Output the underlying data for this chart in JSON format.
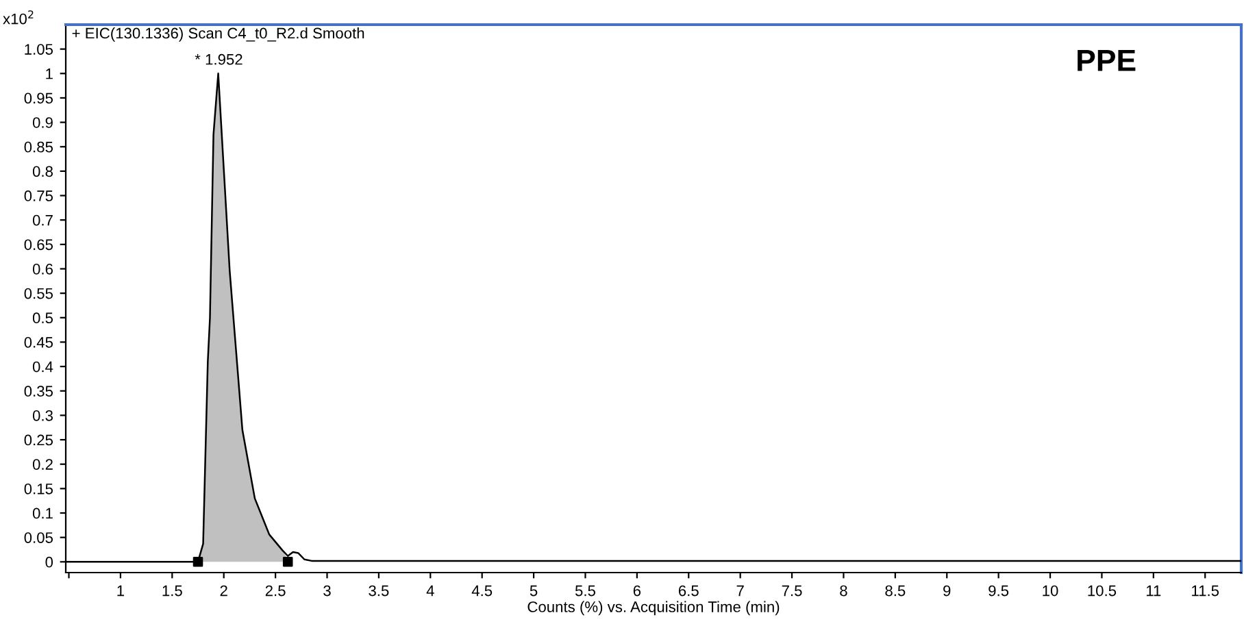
{
  "chart_data": {
    "type": "line",
    "title": "+ EIC(130.1336) Scan C4_t0_R2.d Smooth",
    "xlabel": "Counts (%) vs. Acquisition Time (min)",
    "ylabel": "x10$^{2}$",
    "series": [
      {
        "type": "area",
        "color": "#c0c0c0",
        "x": [
          1.75,
          1.8,
          1.845,
          1.866,
          1.9,
          1.946,
          2.057,
          2.18,
          2.3,
          2.44,
          2.57,
          2.62
        ],
        "values": [
          0,
          0.037,
          0.41,
          0.5,
          0.875,
          1,
          0.596,
          0.27,
          0.13,
          0.056,
          0.023,
          0.005
        ]
      },
      {
        "color": "#000000",
        "x": [
          0.47,
          1.7,
          1.75,
          1.8,
          1.845,
          1.866,
          1.9,
          1.946,
          2.057,
          2.18,
          2.3,
          2.44,
          2.57,
          2.62,
          2.67,
          2.72,
          2.78,
          2.85,
          3.5,
          5,
          7,
          9,
          11,
          11.85
        ],
        "values": [
          0,
          0,
          0,
          0.037,
          0.41,
          0.5,
          0.875,
          1,
          0.596,
          0.27,
          0.13,
          0.056,
          0.023,
          0.012,
          0.02,
          0.018,
          0.005,
          0.002,
          0.002,
          0.002,
          0.002,
          0.002,
          0.002,
          0.002
        ]
      },
      {
        "type": "scatter",
        "color": "#000000",
        "marker": "square",
        "x": [
          1.75,
          2.62
        ],
        "values": [
          0,
          0
        ]
      }
    ],
    "annotations": [
      {
        "text": "* 1.952",
        "x": 1.952,
        "y": 1
      },
      "PPE"
    ],
    "xlim": [
      0.47,
      11.85
    ],
    "ylim": [
      -0.022,
      1.1
    ],
    "xticks": [
      {
        "value": 0.5,
        "label": null
      },
      1,
      1.5,
      2,
      2.5,
      3,
      3.5,
      4,
      4.5,
      5,
      5.5,
      6,
      6.5,
      7,
      7.5,
      8,
      8.5,
      9,
      9.5,
      10,
      10.5,
      11,
      11.5
    ],
    "yticks": [
      0,
      0.05,
      0.1,
      0.15,
      0.2,
      0.25,
      0.3,
      0.35,
      0.4,
      0.45,
      0.5,
      0.55,
      0.6,
      0.65,
      0.7,
      0.75,
      0.8,
      0.85,
      0.9,
      0.95,
      1,
      1.05
    ],
    "grid": false
  }
}
